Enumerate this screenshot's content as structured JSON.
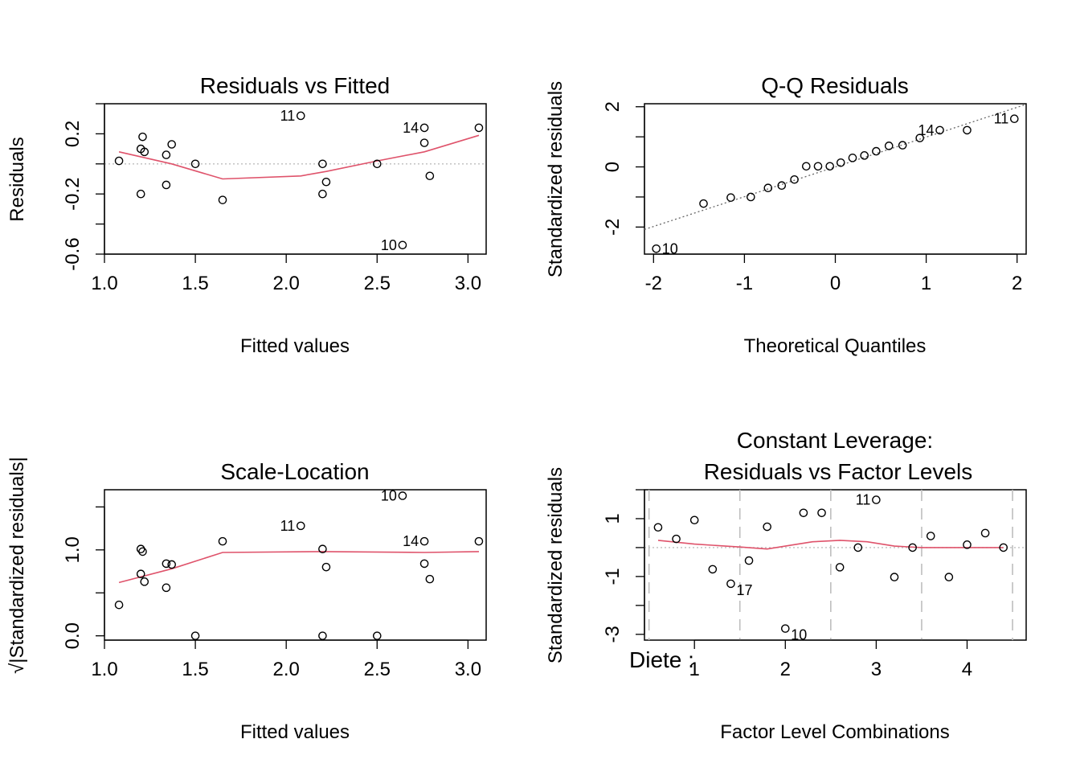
{
  "colors": {
    "smooth": "#DF536B",
    "reference": "#BEBEBE",
    "points": "#000000",
    "qqline": "#666666"
  },
  "panels": {
    "rvf": {
      "title": "Residuals vs Fitted",
      "xlabel": "Fitted values",
      "ylabel": "Residuals"
    },
    "qq": {
      "title": "Q-Q Residuals",
      "xlabel": "Theoretical Quantiles",
      "ylabel": "Standardized residuals"
    },
    "sl": {
      "title": "Scale-Location",
      "xlabel": "Fitted values",
      "ylabel": "√|Standardized residuals|"
    },
    "lev": {
      "title_line1": "Constant Leverage:",
      "title_line2": "Residuals vs Factor Levels",
      "xlabel": "Factor Level Combinations",
      "ylabel": "Standardized residuals",
      "factor_label": "Diete :"
    }
  },
  "chart_data": [
    {
      "id": "rvf",
      "type": "scatter",
      "title": "Residuals vs Fitted",
      "xlabel": "Fitted values",
      "ylabel": "Residuals",
      "xlim": [
        1.0,
        3.1
      ],
      "ylim": [
        -0.6,
        0.4
      ],
      "x_ticks": [
        "1.0",
        "1.5",
        "2.0",
        "2.5",
        "3.0"
      ],
      "x_tick_values": [
        1.0,
        1.5,
        2.0,
        2.5,
        3.0
      ],
      "y_ticks": [
        "-0.6",
        "-0.2",
        "0.2"
      ],
      "y_tick_values": [
        -0.6,
        -0.2,
        0.2
      ],
      "reference_y": 0,
      "points": [
        {
          "x": 1.08,
          "y": 0.02
        },
        {
          "x": 1.2,
          "y": -0.2
        },
        {
          "x": 1.2,
          "y": 0.1
        },
        {
          "x": 1.21,
          "y": 0.18
        },
        {
          "x": 1.22,
          "y": 0.08
        },
        {
          "x": 1.34,
          "y": 0.06
        },
        {
          "x": 1.34,
          "y": -0.14
        },
        {
          "x": 1.37,
          "y": 0.13
        },
        {
          "x": 1.5,
          "y": 0.0
        },
        {
          "x": 1.65,
          "y": -0.24
        },
        {
          "x": 2.08,
          "y": 0.32,
          "label": "11"
        },
        {
          "x": 2.2,
          "y": 0.0
        },
        {
          "x": 2.2,
          "y": -0.2
        },
        {
          "x": 2.22,
          "y": -0.12
        },
        {
          "x": 2.5,
          "y": 0.0
        },
        {
          "x": 2.64,
          "y": -0.54,
          "label": "10"
        },
        {
          "x": 2.76,
          "y": 0.24,
          "label": "14"
        },
        {
          "x": 2.76,
          "y": 0.14
        },
        {
          "x": 2.79,
          "y": -0.08
        },
        {
          "x": 3.06,
          "y": 0.24
        }
      ],
      "smooth": [
        [
          1.08,
          0.08
        ],
        [
          1.37,
          0.0
        ],
        [
          1.65,
          -0.1
        ],
        [
          2.08,
          -0.08
        ],
        [
          2.22,
          -0.05
        ],
        [
          2.5,
          0.02
        ],
        [
          2.76,
          0.08
        ],
        [
          3.06,
          0.19
        ]
      ]
    },
    {
      "id": "qq",
      "type": "scatter",
      "title": "Q-Q Residuals",
      "xlabel": "Theoretical Quantiles",
      "ylabel": "Standardized residuals",
      "xlim": [
        -2.1,
        2.1
      ],
      "ylim": [
        -2.9,
        2.1
      ],
      "x_ticks": [
        "-2",
        "-1",
        "0",
        "1",
        "2"
      ],
      "x_tick_values": [
        -2,
        -1,
        0,
        1,
        2
      ],
      "y_ticks": [
        "-2",
        "0",
        "2"
      ],
      "y_tick_values": [
        -2,
        0,
        2
      ],
      "points": [
        {
          "x": -1.97,
          "y": -2.72,
          "label": "10"
        },
        {
          "x": -1.45,
          "y": -1.22
        },
        {
          "x": -1.15,
          "y": -1.02
        },
        {
          "x": -0.93,
          "y": -1.0
        },
        {
          "x": -0.74,
          "y": -0.7
        },
        {
          "x": -0.59,
          "y": -0.62
        },
        {
          "x": -0.45,
          "y": -0.42
        },
        {
          "x": -0.32,
          "y": 0.02
        },
        {
          "x": -0.19,
          "y": 0.02
        },
        {
          "x": -0.06,
          "y": 0.02
        },
        {
          "x": 0.06,
          "y": 0.14
        },
        {
          "x": 0.19,
          "y": 0.3
        },
        {
          "x": 0.32,
          "y": 0.38
        },
        {
          "x": 0.45,
          "y": 0.52
        },
        {
          "x": 0.59,
          "y": 0.7
        },
        {
          "x": 0.74,
          "y": 0.72
        },
        {
          "x": 0.93,
          "y": 0.96
        },
        {
          "x": 1.15,
          "y": 1.22,
          "label": "14"
        },
        {
          "x": 1.45,
          "y": 1.22
        },
        {
          "x": 1.97,
          "y": 1.6,
          "label": "11"
        }
      ],
      "qqline": [
        [
          -2.1,
          -2.08
        ],
        [
          2.1,
          2.08
        ]
      ]
    },
    {
      "id": "sl",
      "type": "scatter",
      "title": "Scale-Location",
      "xlabel": "Fitted values",
      "ylabel": "√|Standardized residuals|",
      "xlim": [
        1.0,
        3.1
      ],
      "ylim": [
        -0.05,
        1.7
      ],
      "x_ticks": [
        "1.0",
        "1.5",
        "2.0",
        "2.5",
        "3.0"
      ],
      "x_tick_values": [
        1.0,
        1.5,
        2.0,
        2.5,
        3.0
      ],
      "y_ticks": [
        "0.0",
        "1.0"
      ],
      "y_tick_values": [
        0.0,
        1.0
      ],
      "points": [
        {
          "x": 1.08,
          "y": 0.36
        },
        {
          "x": 1.2,
          "y": 1.01
        },
        {
          "x": 1.2,
          "y": 0.72
        },
        {
          "x": 1.21,
          "y": 0.98
        },
        {
          "x": 1.22,
          "y": 0.63
        },
        {
          "x": 1.34,
          "y": 0.84
        },
        {
          "x": 1.34,
          "y": 0.56
        },
        {
          "x": 1.37,
          "y": 0.83
        },
        {
          "x": 1.5,
          "y": 0.0
        },
        {
          "x": 1.65,
          "y": 1.1
        },
        {
          "x": 2.08,
          "y": 1.28,
          "label": "11"
        },
        {
          "x": 2.2,
          "y": 1.01
        },
        {
          "x": 2.2,
          "y": 0.0
        },
        {
          "x": 2.22,
          "y": 0.8
        },
        {
          "x": 2.5,
          "y": 0.0
        },
        {
          "x": 2.64,
          "y": 1.63,
          "label": "10"
        },
        {
          "x": 2.76,
          "y": 1.1,
          "label": "14"
        },
        {
          "x": 2.76,
          "y": 0.84
        },
        {
          "x": 2.79,
          "y": 0.66
        },
        {
          "x": 3.06,
          "y": 1.1
        }
      ],
      "smooth": [
        [
          1.08,
          0.62
        ],
        [
          1.37,
          0.78
        ],
        [
          1.65,
          0.97
        ],
        [
          2.2,
          0.98
        ],
        [
          2.76,
          0.97
        ],
        [
          3.06,
          0.98
        ]
      ]
    },
    {
      "id": "lev",
      "type": "scatter",
      "title": "Constant Leverage: Residuals vs Factor Levels",
      "xlabel": "Factor Level Combinations",
      "ylabel": "Standardized residuals",
      "factor_label": "Diete :",
      "xlim": [
        0.45,
        4.65
      ],
      "ylim": [
        -3.2,
        2.0
      ],
      "x_ticks": [
        "1",
        "2",
        "3",
        "4"
      ],
      "x_tick_values": [
        1,
        2,
        3,
        4
      ],
      "y_ticks": [
        "-3",
        "-1",
        "1"
      ],
      "y_tick_values": [
        -3,
        -1,
        1
      ],
      "reference_y": 0,
      "group_boundaries": [
        0.5,
        1.5,
        2.5,
        3.5,
        4.5
      ],
      "points": [
        {
          "x": 0.6,
          "y": 0.7
        },
        {
          "x": 0.8,
          "y": 0.3
        },
        {
          "x": 1.0,
          "y": 0.95
        },
        {
          "x": 1.2,
          "y": -0.75
        },
        {
          "x": 1.4,
          "y": -1.25,
          "label": "17"
        },
        {
          "x": 1.6,
          "y": -0.45
        },
        {
          "x": 1.8,
          "y": 0.72
        },
        {
          "x": 2.0,
          "y": -2.8,
          "label": "10"
        },
        {
          "x": 2.2,
          "y": 1.2
        },
        {
          "x": 2.4,
          "y": 1.2
        },
        {
          "x": 2.6,
          "y": -0.68
        },
        {
          "x": 2.8,
          "y": 0.0
        },
        {
          "x": 3.0,
          "y": 1.65,
          "label": "11"
        },
        {
          "x": 3.2,
          "y": -1.02
        },
        {
          "x": 3.4,
          "y": 0.0
        },
        {
          "x": 3.6,
          "y": 0.4
        },
        {
          "x": 3.8,
          "y": -1.02
        },
        {
          "x": 4.0,
          "y": 0.1
        },
        {
          "x": 4.2,
          "y": 0.5
        },
        {
          "x": 4.4,
          "y": 0.0
        }
      ],
      "smooth": [
        [
          0.6,
          0.25
        ],
        [
          1.0,
          0.12
        ],
        [
          1.5,
          0.02
        ],
        [
          1.8,
          -0.05
        ],
        [
          2.0,
          0.05
        ],
        [
          2.3,
          0.2
        ],
        [
          2.6,
          0.25
        ],
        [
          2.9,
          0.2
        ],
        [
          3.2,
          0.05
        ],
        [
          3.5,
          0.0
        ],
        [
          4.0,
          0.0
        ],
        [
          4.4,
          0.0
        ]
      ]
    }
  ]
}
